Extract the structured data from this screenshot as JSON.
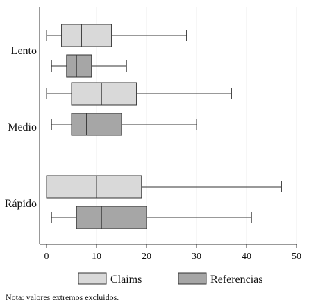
{
  "chart_data": {
    "type": "boxplot",
    "orientation": "horizontal",
    "categories": [
      "Lento",
      "Medio",
      "Rápido"
    ],
    "series": [
      {
        "name": "Claims",
        "color": "#d9d9d9",
        "boxes": [
          {
            "category": "Lento",
            "min": 0,
            "q1": 3,
            "median": 7,
            "q3": 13,
            "max": 28
          },
          {
            "category": "Medio",
            "min": 0,
            "q1": 5,
            "median": 11,
            "q3": 18,
            "max": 37
          },
          {
            "category": "Rápido",
            "min": 0,
            "q1": 0,
            "median": 10,
            "q3": 19,
            "max": 47
          }
        ]
      },
      {
        "name": "Referencias",
        "color": "#a6a6a6",
        "boxes": [
          {
            "category": "Lento",
            "min": 1,
            "q1": 4,
            "median": 6,
            "q3": 9,
            "max": 16
          },
          {
            "category": "Medio",
            "min": 1,
            "q1": 5,
            "median": 8,
            "q3": 15,
            "max": 30
          },
          {
            "category": "Rápido",
            "min": 1,
            "q1": 6,
            "median": 11,
            "q3": 20,
            "max": 41
          }
        ]
      }
    ],
    "x_ticks": [
      0,
      10,
      20,
      30,
      40,
      50
    ],
    "x_tick_labels": [
      "0",
      "10",
      "20",
      "30",
      "40",
      "50"
    ],
    "xlim": [
      -1,
      50
    ],
    "grid": true,
    "legend_position": "bottom",
    "note": "Nota: valores extremos excluidos."
  }
}
